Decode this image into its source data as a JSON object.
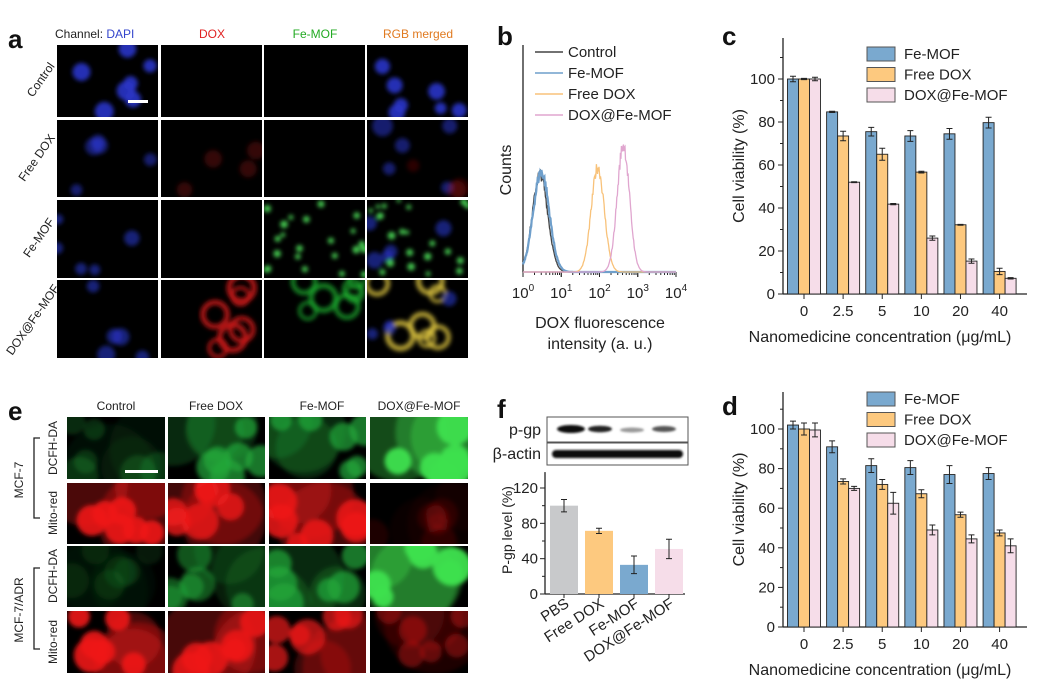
{
  "panels": {
    "a": {
      "label": "a",
      "channel_prefix": "Channel: ",
      "columns": [
        "DAPI",
        "DOX",
        "Fe-MOF",
        "RGB merged"
      ],
      "column_colors": [
        "#3344cc",
        "#e02020",
        "#22aa22",
        "#e07a20"
      ],
      "rows": [
        "Control",
        "Free DOX",
        "Fe-MOF",
        "DOX@Fe-MOF"
      ]
    },
    "b": {
      "label": "b"
    },
    "c": {
      "label": "c"
    },
    "d": {
      "label": "d"
    },
    "e": {
      "label": "e",
      "columns": [
        "Control",
        "Free DOX",
        "Fe-MOF",
        "DOX@Fe-MOF"
      ],
      "cell_lines": [
        "MCF-7",
        "MCF-7/ADR"
      ],
      "stains": [
        "DCFH-DA",
        "Mito-red"
      ]
    },
    "f": {
      "label": "f",
      "blot_labels": [
        "p-gp",
        "β-actin"
      ]
    }
  },
  "chart_data": [
    {
      "panel": "b",
      "type": "line",
      "xlabel": [
        "DOX fluorescence",
        "intensity (a. u.)"
      ],
      "ylabel": "Counts",
      "x_scale": "log",
      "xlim": [
        1,
        10000
      ],
      "x_tick_labels": [
        "0",
        "1",
        "2",
        "3",
        "4"
      ],
      "x_tick_base": "10",
      "legend": "top",
      "series": [
        {
          "name": "Control",
          "color": "#444444",
          "peak_intensity": 2.8,
          "relative_peak_height": 0.43,
          "width_log": 0.2
        },
        {
          "name": "Fe-MOF",
          "color": "#6f9fcb",
          "peak_intensity": 3.0,
          "relative_peak_height": 0.44,
          "width_log": 0.21
        },
        {
          "name": "Free DOX",
          "color": "#f8c27a",
          "peak_intensity": 90,
          "relative_peak_height": 0.46,
          "width_log": 0.17
        },
        {
          "name": "DOX@Fe-MOF",
          "color": "#e0a6cf",
          "peak_intensity": 420,
          "relative_peak_height": 0.56,
          "width_log": 0.16
        }
      ]
    },
    {
      "panel": "c",
      "type": "bar",
      "xlabel": "Nanomedicine concentration (μg/mL)",
      "ylabel": "Cell viability (%)",
      "ylim": [
        0,
        119
      ],
      "y_ticks": [
        0,
        20,
        40,
        60,
        80,
        100
      ],
      "categories": [
        "0",
        "2.5",
        "5",
        "10",
        "20",
        "40"
      ],
      "legend": "top-right",
      "series": [
        {
          "name": "Fe-MOF",
          "color": "#7aa9cf",
          "values": [
            100,
            84.7,
            75.5,
            73.5,
            74.5,
            79.7
          ],
          "errors": [
            1.3,
            0.3,
            2,
            2.5,
            2.5,
            2.5
          ]
        },
        {
          "name": "Free DOX",
          "color": "#fdc97f",
          "values": [
            100,
            73.5,
            65,
            56.7,
            32.2,
            10.5
          ],
          "errors": [
            0.3,
            2.2,
            2.8,
            0.4,
            0.2,
            1.5
          ]
        },
        {
          "name": "DOX@Fe-MOF",
          "color": "#f6dde9",
          "values": [
            100,
            52,
            41.8,
            26,
            15.3,
            7.3
          ],
          "errors": [
            0.8,
            0.2,
            0.3,
            1,
            1,
            0.3
          ]
        }
      ]
    },
    {
      "panel": "d",
      "type": "bar",
      "xlabel": "Nanomedicine concentration (μg/mL)",
      "ylabel": "Cell viability (%)",
      "ylim": [
        0,
        119
      ],
      "y_ticks": [
        0,
        20,
        40,
        60,
        80,
        100
      ],
      "categories": [
        "0",
        "2.5",
        "5",
        "10",
        "20",
        "40"
      ],
      "legend": "top-right",
      "series": [
        {
          "name": "Fe-MOF",
          "color": "#7aa9cf",
          "values": [
            102,
            91,
            81.5,
            80.5,
            77,
            77.5
          ],
          "errors": [
            2,
            3,
            3.5,
            3.5,
            4.5,
            3
          ]
        },
        {
          "name": "Free DOX",
          "color": "#fdc97f",
          "values": [
            100,
            73.5,
            72,
            67.3,
            56.7,
            47.5
          ],
          "errors": [
            3,
            1.3,
            2.5,
            2,
            1.3,
            1.5
          ]
        },
        {
          "name": "DOX@Fe-MOF",
          "color": "#f6dde9",
          "values": [
            99.5,
            70,
            62.5,
            49,
            44.5,
            41
          ],
          "errors": [
            3.5,
            1,
            5.5,
            2.5,
            2,
            3.5
          ]
        }
      ]
    },
    {
      "panel": "f",
      "type": "bar",
      "ylabel": "P-gp level (%)",
      "ylim": [
        0,
        138
      ],
      "y_ticks": [
        0,
        40,
        80,
        120
      ],
      "categories": [
        "PBS",
        "Free DOX",
        "Fe-MOF",
        "DOX@Fe-MOF"
      ],
      "colors": [
        "#c8c9cb",
        "#fdc97f",
        "#7aa9cf",
        "#f6dde9"
      ],
      "values": [
        100,
        71.5,
        33,
        51
      ],
      "errors": [
        7,
        3,
        10,
        11
      ]
    }
  ]
}
